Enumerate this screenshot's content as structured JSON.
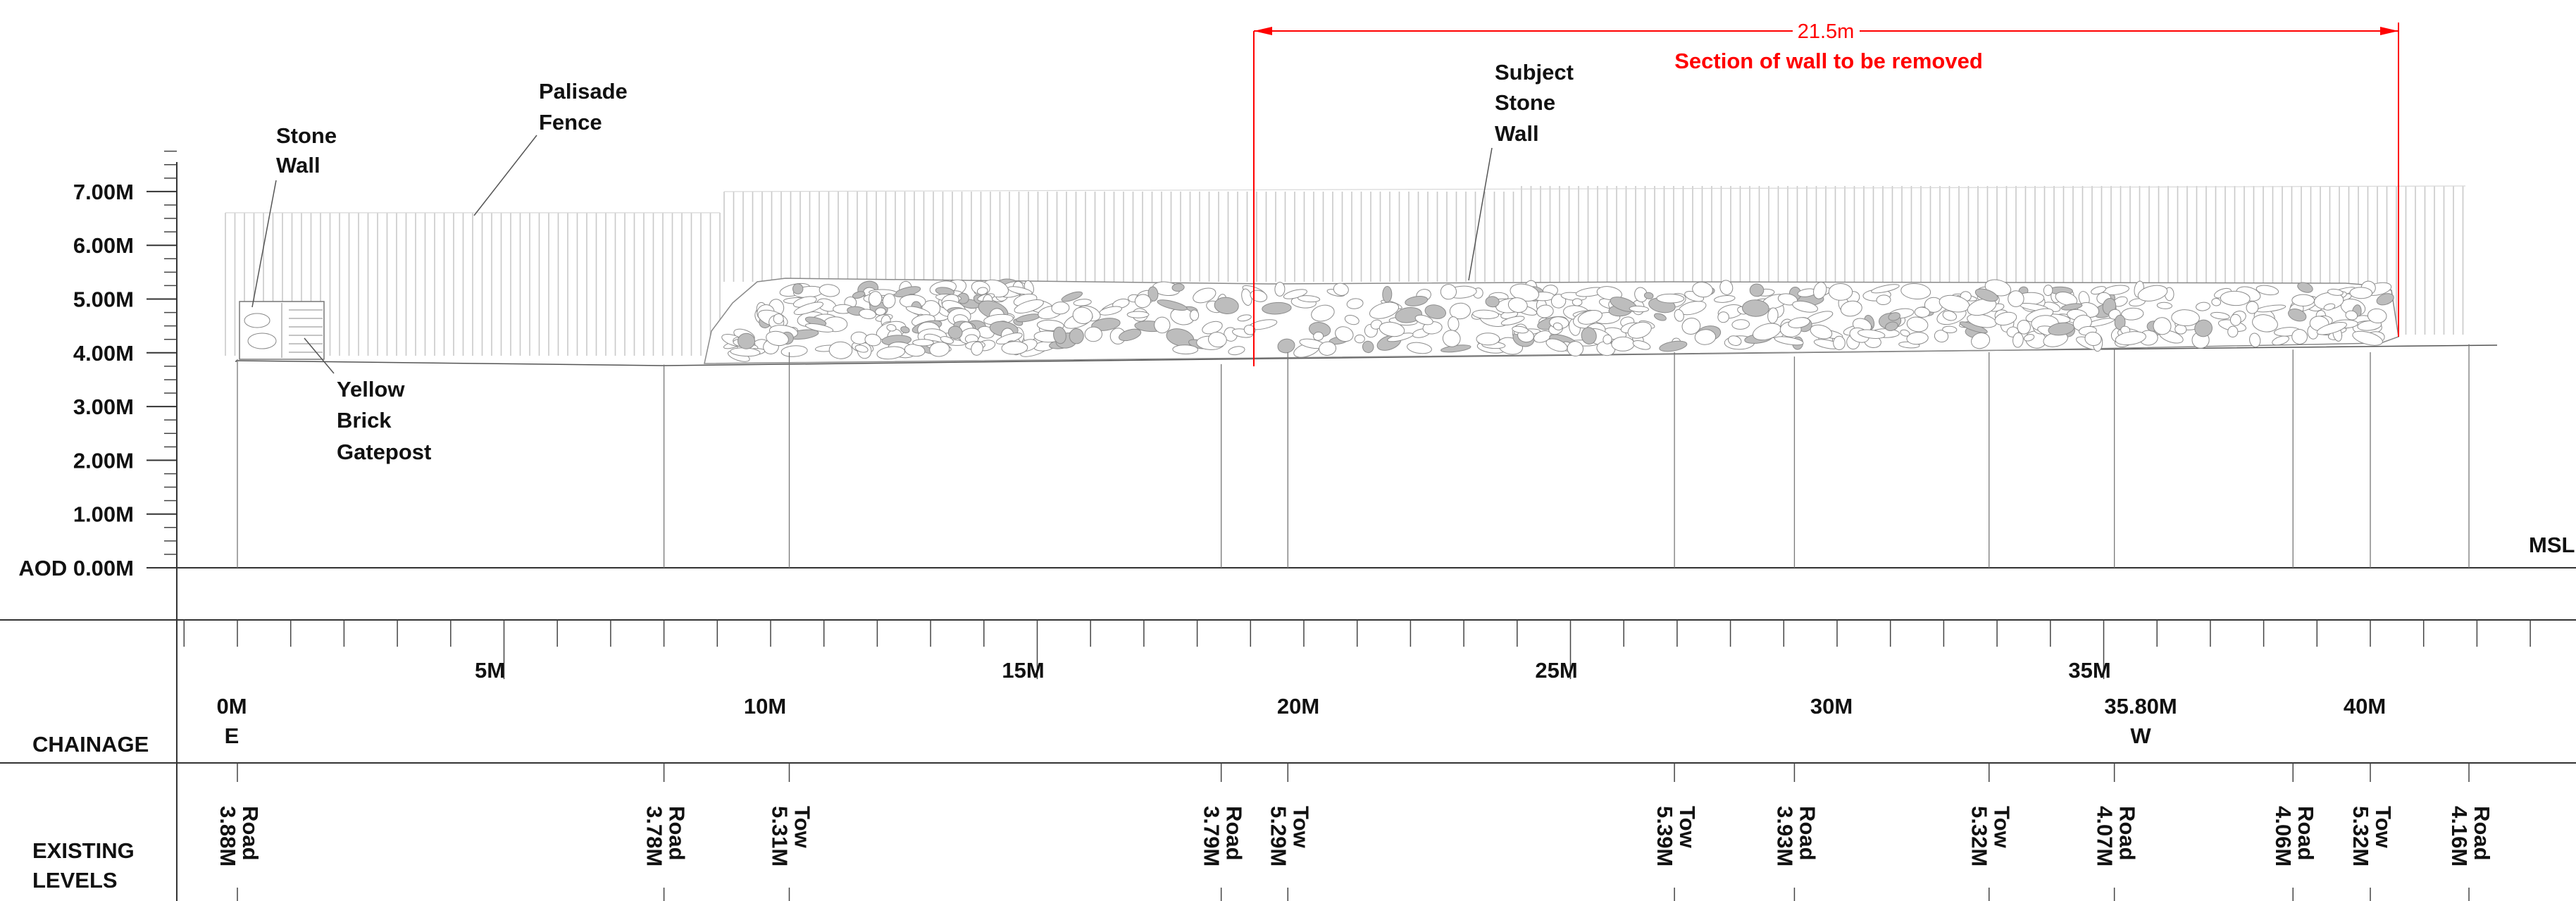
{
  "notes": {
    "stone_wall": [
      "Stone",
      "Wall"
    ],
    "palisade_fence": [
      "Palisade",
      "Fence"
    ],
    "subject_stone_wall": [
      "Subject",
      "Stone",
      "Wall"
    ],
    "yellow_brick_gatepost": [
      "Yellow",
      "Brick",
      "Gatepost"
    ],
    "msl": "MSL"
  },
  "dimension": {
    "value": "21.5m",
    "caption": "Section of wall to be removed",
    "color": "#ff0000"
  },
  "level_axis": {
    "ticks": [
      {
        "label": "7.00M",
        "value": 7
      },
      {
        "label": "6.00M",
        "value": 6
      },
      {
        "label": "5.00M",
        "value": 5
      },
      {
        "label": "4.00M",
        "value": 4
      },
      {
        "label": "3.00M",
        "value": 3
      },
      {
        "label": "2.00M",
        "value": 2
      },
      {
        "label": "1.00M",
        "value": 1
      },
      {
        "label": "AOD 0.00M",
        "value": 0
      }
    ]
  },
  "chainage": {
    "row_label": "CHAINAGE",
    "upper_labels": [
      {
        "text": "5M",
        "value": 5
      },
      {
        "text": "15M",
        "value": 15
      },
      {
        "text": "25M",
        "value": 25
      },
      {
        "text": "35M",
        "value": 35
      }
    ],
    "lower_labels": [
      {
        "text": "0M",
        "sub": "E",
        "value": 0
      },
      {
        "text": "10M",
        "sub": "",
        "value": 10
      },
      {
        "text": "20M",
        "sub": "",
        "value": 20
      },
      {
        "text": "30M",
        "sub": "",
        "value": 30
      },
      {
        "text": "35.80M",
        "sub": "W",
        "value": 35.8
      },
      {
        "text": "40M",
        "sub": "",
        "value": 40
      }
    ]
  },
  "existing_levels": {
    "row_label": [
      "EXISTING",
      "LEVELS"
    ],
    "points": [
      {
        "type": "Road",
        "level": "3.88M",
        "chainage": 0
      },
      {
        "type": "Road",
        "level": "3.78M",
        "chainage": 8.0
      },
      {
        "type": "Tow",
        "level": "5.31M",
        "chainage": 10.35
      },
      {
        "type": "Road",
        "level": "3.79M",
        "chainage": 18.45
      },
      {
        "type": "Tow",
        "level": "5.29M",
        "chainage": 19.7
      },
      {
        "type": "Tow",
        "level": "5.39M",
        "chainage": 26.95
      },
      {
        "type": "Road",
        "level": "3.93M",
        "chainage": 29.2
      },
      {
        "type": "Tow",
        "level": "5.32M",
        "chainage": 32.85
      },
      {
        "type": "Road",
        "level": "4.07M",
        "chainage": 35.2
      },
      {
        "type": "Road",
        "level": "4.06M",
        "chainage": 38.55
      },
      {
        "type": "Tow",
        "level": "5.32M",
        "chainage": 40.0
      },
      {
        "type": "Road",
        "level": "4.16M",
        "chainage": 41.85
      }
    ]
  }
}
